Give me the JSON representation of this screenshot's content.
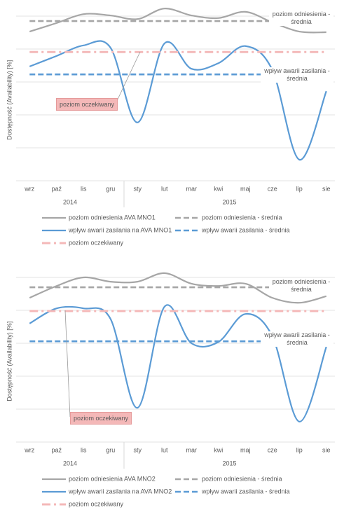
{
  "chart_data": [
    {
      "type": "line",
      "y_label": "Dostępność (Availability) [%]",
      "categories": [
        "wrz",
        "paź",
        "lis",
        "gru",
        "sty",
        "lut",
        "mar",
        "kwi",
        "maj",
        "cze",
        "lip",
        "sie"
      ],
      "years": [
        {
          "label": "2014",
          "months": 4
        },
        {
          "label": "2015",
          "months": 8
        }
      ],
      "ylim": [
        0,
        5.5
      ],
      "yticks": [
        0,
        1,
        2,
        3,
        4,
        5
      ],
      "grid": true,
      "series": [
        {
          "name": "poziom odniesienia AVA MNO1",
          "color": "#a6a6a6",
          "dash": "solid",
          "values": [
            4.53,
            4.79,
            5.06,
            5.02,
            4.91,
            5.23,
            5.02,
            4.94,
            5.13,
            4.81,
            4.53,
            4.51
          ]
        },
        {
          "name": "poziom odniesienia - średnia",
          "color": "#a6a6a6",
          "dash": "dashed",
          "values": [
            4.85,
            4.85,
            4.85,
            4.85,
            4.85,
            4.85,
            4.85,
            4.85,
            4.85,
            4.85,
            4.85,
            4.85
          ]
        },
        {
          "name": "wpływ awarii zasilania na AVA MNO1",
          "color": "#5b9bd5",
          "dash": "solid",
          "values": [
            3.47,
            3.79,
            4.11,
            4.04,
            1.77,
            4.17,
            3.4,
            3.57,
            4.09,
            3.36,
            0.64,
            2.72
          ]
        },
        {
          "name": "wpływ awarii zasilania - średnia",
          "color": "#5b9bd5",
          "dash": "dashed",
          "values": [
            3.23,
            3.23,
            3.23,
            3.23,
            3.23,
            3.23,
            3.23,
            3.23,
            3.23,
            3.23,
            3.23,
            3.23
          ]
        },
        {
          "name": "poziom oczekiwany",
          "color": "#f4b8b8",
          "dash": "dashdot",
          "values": [
            3.91,
            3.91,
            3.91,
            3.91,
            3.91,
            3.91,
            3.91,
            3.91,
            3.91,
            3.91,
            3.91,
            3.91
          ]
        }
      ],
      "annotations": [
        "poziom odniesienia - średnia",
        "wpływ awarii zasilania - średnia",
        "poziom oczekiwany"
      ]
    },
    {
      "type": "line",
      "y_label": "Dostępność (Availability) [%]",
      "categories": [
        "wrz",
        "paź",
        "lis",
        "gru",
        "sty",
        "lut",
        "mar",
        "kwi",
        "maj",
        "cze",
        "lip",
        "sie"
      ],
      "years": [
        {
          "label": "2014",
          "months": 4
        },
        {
          "label": "2015",
          "months": 8
        }
      ],
      "ylim": [
        0,
        5.5
      ],
      "yticks": [
        0,
        1,
        2,
        3,
        4,
        5
      ],
      "grid": true,
      "series": [
        {
          "name": "poziom odniesienia AVA MNO2",
          "color": "#a6a6a6",
          "dash": "solid",
          "values": [
            4.38,
            4.74,
            5.0,
            4.87,
            4.87,
            5.13,
            4.81,
            4.74,
            4.81,
            4.38,
            4.23,
            4.43
          ]
        },
        {
          "name": "poziom odniesienia - średnia",
          "color": "#a6a6a6",
          "dash": "dashed",
          "values": [
            4.7,
            4.7,
            4.7,
            4.7,
            4.7,
            4.7,
            4.7,
            4.7,
            4.7,
            4.7,
            4.7,
            4.7
          ]
        },
        {
          "name": "wpływ awarii zasilania na AVA MNO2",
          "color": "#5b9bd5",
          "dash": "solid",
          "values": [
            3.6,
            4.06,
            4.06,
            3.74,
            1.04,
            4.11,
            3.0,
            3.04,
            3.89,
            3.21,
            0.62,
            2.89
          ]
        },
        {
          "name": "wpływ awarii zasilania - średnia",
          "color": "#5b9bd5",
          "dash": "dashed",
          "values": [
            3.06,
            3.06,
            3.06,
            3.06,
            3.06,
            3.06,
            3.06,
            3.06,
            3.06,
            3.06,
            3.06,
            3.06
          ]
        },
        {
          "name": "poziom oczekiwany",
          "color": "#f4b8b8",
          "dash": "dashdot",
          "values": [
            3.98,
            3.98,
            3.98,
            3.98,
            3.98,
            3.98,
            3.98,
            3.98,
            3.98,
            3.98,
            3.98,
            3.98
          ]
        }
      ],
      "annotations": [
        "poziom odniesienia - średnia",
        "wpływ awarii zasilania - średnia",
        "poziom oczekiwany"
      ]
    }
  ]
}
